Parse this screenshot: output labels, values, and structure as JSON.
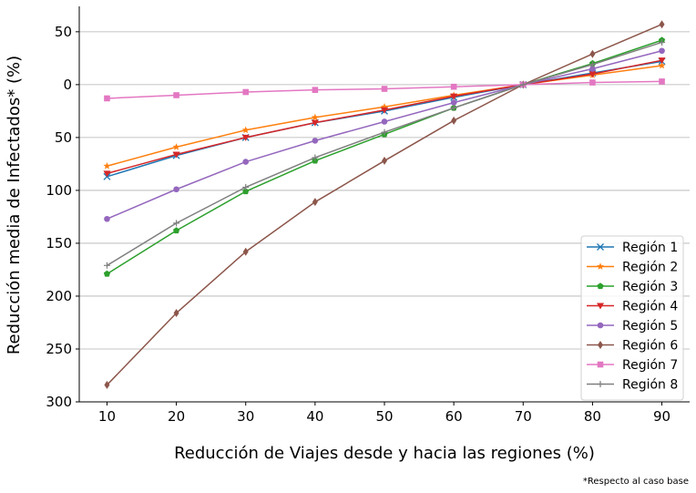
{
  "chart_data": {
    "type": "line",
    "xlabel": "Reducción de Viajes desde y hacia las regiones (%)",
    "ylabel": "Reducción media de Infectados* (%)",
    "footnote": "*Respecto al caso base",
    "x": [
      10,
      20,
      30,
      40,
      50,
      60,
      70,
      80,
      90
    ],
    "xlim": [
      6,
      94
    ],
    "ylim": [
      -300,
      74
    ],
    "yticks": [
      {
        "value": 50,
        "label": "50"
      },
      {
        "value": 0,
        "label": "0"
      },
      {
        "value": -50,
        "label": "50"
      },
      {
        "value": -100,
        "label": "100"
      },
      {
        "value": -150,
        "label": "150"
      },
      {
        "value": -200,
        "label": "200"
      },
      {
        "value": -250,
        "label": "250"
      },
      {
        "value": -300,
        "label": "300"
      }
    ],
    "xticks": [
      10,
      20,
      30,
      40,
      50,
      60,
      70,
      80,
      90
    ],
    "grid": "horizontal",
    "legend_position": "bottom-right",
    "series": [
      {
        "name": "Región 1",
        "color": "#1f77b4",
        "marker": "x",
        "values": [
          -87,
          -67,
          -50,
          -36,
          -25,
          -12,
          0,
          11,
          22
        ]
      },
      {
        "name": "Región 2",
        "color": "#ff7f0e",
        "marker": "star",
        "values": [
          -77,
          -59,
          -43,
          -31,
          -21,
          -10,
          0,
          9,
          18
        ]
      },
      {
        "name": "Región 3",
        "color": "#2ca02c",
        "marker": "pentagon",
        "values": [
          -179,
          -138,
          -101,
          -72,
          -47,
          -22,
          0,
          20,
          42
        ]
      },
      {
        "name": "Región 4",
        "color": "#d62728",
        "marker": "triangle-down",
        "values": [
          -84,
          -66,
          -50,
          -36,
          -24,
          -11,
          0,
          10,
          23
        ]
      },
      {
        "name": "Región 5",
        "color": "#9467bd",
        "marker": "circle",
        "values": [
          -127,
          -99,
          -73,
          -53,
          -35,
          -17,
          0,
          15,
          32
        ]
      },
      {
        "name": "Región 6",
        "color": "#8c564b",
        "marker": "diamond",
        "values": [
          -284,
          -216,
          -158,
          -111,
          -72,
          -34,
          0,
          29,
          57
        ]
      },
      {
        "name": "Región 7",
        "color": "#e377c2",
        "marker": "square",
        "values": [
          -13,
          -10,
          -7,
          -5,
          -4,
          -2,
          0,
          2,
          3
        ]
      },
      {
        "name": "Región 8",
        "color": "#7f7f7f",
        "marker": "plus",
        "values": [
          -171,
          -131,
          -97,
          -69,
          -45,
          -22,
          0,
          19,
          40
        ]
      }
    ]
  }
}
